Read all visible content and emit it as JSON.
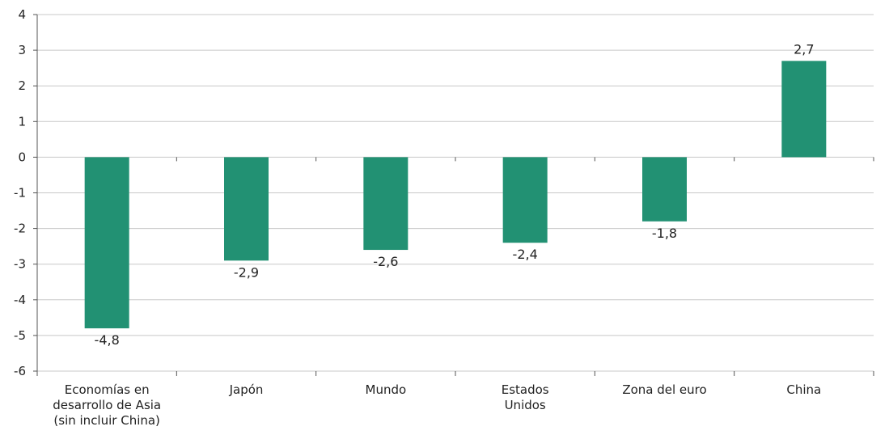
{
  "chart_data": {
    "type": "bar",
    "categories": [
      [
        "Economías en",
        "desarrollo de Asia",
        "(sin incluir China)"
      ],
      [
        "Japón"
      ],
      [
        "Mundo"
      ],
      [
        "Estados",
        "Unidos"
      ],
      [
        "Zona del euro"
      ],
      [
        "China"
      ]
    ],
    "values": [
      -4.8,
      -2.9,
      -2.6,
      -2.4,
      -1.8,
      2.7
    ],
    "value_labels": [
      "-4,8",
      "-2,9",
      "-2,6",
      "-2,4",
      "-1,8",
      "2,7"
    ],
    "y_ticks": [
      4,
      3,
      2,
      1,
      0,
      -1,
      -2,
      -3,
      -4,
      -5,
      -6
    ],
    "ylim": [
      -6,
      4
    ],
    "grid": true,
    "title": "",
    "xlabel": "",
    "ylabel": "",
    "colors": {
      "bar": "#229173",
      "grid": "#c8c8c8",
      "axis": "#555555",
      "text": "#222222"
    }
  }
}
